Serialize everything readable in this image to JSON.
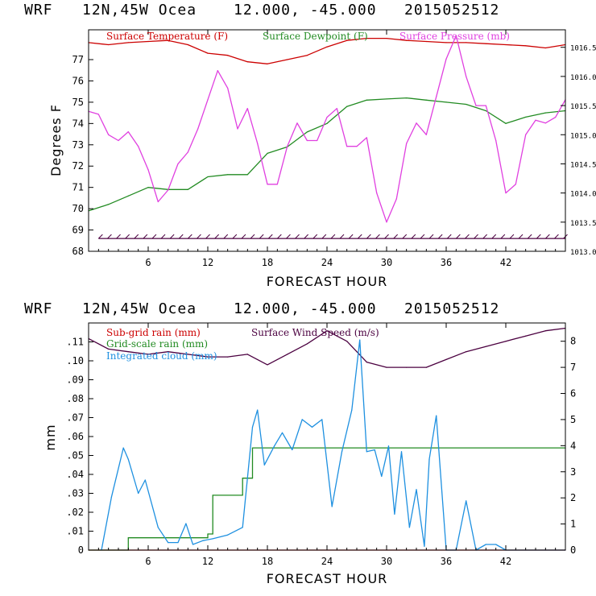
{
  "panels": [
    {
      "header": {
        "model": "WRF",
        "location": "12N,45W Ocea",
        "coords": "12.000, -45.000",
        "run": "2015052512"
      },
      "xlabel": "FORECAST HOUR",
      "ylabel": "Degrees F",
      "x_ticks": [
        "6",
        "12",
        "18",
        "24",
        "30",
        "36",
        "42"
      ],
      "y_left_ticks": [
        "68",
        "69",
        "70",
        "71",
        "72",
        "73",
        "74",
        "75",
        "76",
        "77"
      ],
      "y_right_ticks": [
        "1013.0",
        "1013.5",
        "1014.0",
        "1014.5",
        "1015.0",
        "1015.5",
        "1016.0",
        "1016.5"
      ],
      "legend": [
        {
          "label": "Surface Temperature (F)",
          "color": "#cc0000"
        },
        {
          "label": "Surface Dewpoint (F)",
          "color": "#228b22"
        },
        {
          "label": "Surface Pressure (mb)",
          "color": "#e040e0"
        }
      ]
    },
    {
      "header": {
        "model": "WRF",
        "location": "12N,45W Ocea",
        "coords": "12.000, -45.000",
        "run": "2015052512"
      },
      "xlabel": "FORECAST HOUR",
      "ylabel": "mm",
      "x_ticks": [
        "6",
        "12",
        "18",
        "24",
        "30",
        "36",
        "42"
      ],
      "y_left_ticks": [
        "0",
        ".01",
        ".02",
        ".03",
        ".04",
        ".05",
        ".06",
        ".07",
        ".08",
        ".09",
        ".10",
        ".11"
      ],
      "y_right_ticks": [
        "0",
        "1",
        "2",
        "3",
        "4",
        "5",
        "6",
        "7",
        "8"
      ],
      "legend": [
        {
          "label": "Sub-grid rain (mm)",
          "color": "#cc0000"
        },
        {
          "label": "Surface Wind Speed (m/s)",
          "color": "#4b0040"
        },
        {
          "label": "Grid-scale rain (mm)",
          "color": "#228b22"
        },
        {
          "label": "Integrated cloud (mm)",
          "color": "#1e90e0"
        }
      ]
    }
  ],
  "chart_data": [
    {
      "type": "line",
      "title": "WRF 12N,45W Ocea 12.000, -45.000 2015052512",
      "xlabel": "FORECAST HOUR",
      "ylabel": "Degrees F",
      "xlim": [
        0,
        48
      ],
      "ylim": [
        68,
        78.4
      ],
      "y2lim": [
        1013.0,
        1016.8
      ],
      "series": [
        {
          "name": "Surface Temperature (F)",
          "axis": "left",
          "color": "#cc0000",
          "x": [
            0,
            2,
            4,
            6,
            8,
            10,
            12,
            14,
            16,
            18,
            20,
            22,
            24,
            26,
            28,
            30,
            32,
            34,
            36,
            38,
            40,
            42,
            44,
            46,
            48
          ],
          "y": [
            77.8,
            77.7,
            77.8,
            77.85,
            77.9,
            77.7,
            77.3,
            77.2,
            76.9,
            76.8,
            77.0,
            77.2,
            77.6,
            77.9,
            78.0,
            78.0,
            77.9,
            77.85,
            77.8,
            77.8,
            77.75,
            77.7,
            77.65,
            77.55,
            77.7
          ]
        },
        {
          "name": "Surface Dewpoint (F)",
          "axis": "left",
          "color": "#228b22",
          "x": [
            0,
            2,
            4,
            6,
            8,
            10,
            12,
            14,
            16,
            18,
            20,
            22,
            24,
            26,
            28,
            30,
            32,
            34,
            36,
            38,
            40,
            42,
            44,
            46,
            48
          ],
          "y": [
            69.9,
            70.2,
            70.6,
            71.0,
            70.9,
            70.9,
            71.5,
            71.6,
            71.6,
            72.6,
            72.9,
            73.6,
            74.0,
            74.8,
            75.1,
            75.15,
            75.2,
            75.1,
            75.0,
            74.9,
            74.6,
            74.0,
            74.3,
            74.5,
            74.6
          ]
        },
        {
          "name": "Surface Pressure (mb)",
          "axis": "right",
          "color": "#e040e0",
          "x": [
            0,
            1,
            2,
            3,
            4,
            5,
            6,
            7,
            8,
            9,
            10,
            11,
            12,
            13,
            14,
            15,
            16,
            17,
            18,
            19,
            20,
            21,
            22,
            23,
            24,
            25,
            26,
            27,
            28,
            29,
            30,
            31,
            32,
            33,
            34,
            35,
            36,
            37,
            38,
            39,
            40,
            41,
            42,
            43,
            44,
            45,
            46,
            47,
            48
          ],
          "y": [
            1015.4,
            1015.35,
            1015.0,
            1014.9,
            1015.05,
            1014.8,
            1014.4,
            1013.85,
            1014.05,
            1014.5,
            1014.7,
            1015.1,
            1015.6,
            1016.1,
            1015.8,
            1015.1,
            1015.45,
            1014.85,
            1014.15,
            1014.15,
            1014.8,
            1015.2,
            1014.9,
            1014.9,
            1015.3,
            1015.45,
            1014.8,
            1014.8,
            1014.95,
            1014.0,
            1013.5,
            1013.9,
            1014.85,
            1015.2,
            1015.0,
            1015.65,
            1016.3,
            1016.7,
            1016.0,
            1015.5,
            1015.5,
            1014.9,
            1014.0,
            1014.15,
            1015.0,
            1015.25,
            1015.2,
            1015.3,
            1015.6
          ]
        },
        {
          "name": "Surface Wind Barbs",
          "axis": "left",
          "color": "#4b0040",
          "x": [
            1,
            48
          ],
          "y": [
            68.6,
            68.6
          ]
        }
      ]
    },
    {
      "type": "line",
      "title": "WRF 12N,45W Ocea 12.000, -45.000 2015052512",
      "xlabel": "FORECAST HOUR",
      "ylabel": "mm",
      "xlim": [
        0,
        48
      ],
      "ylim": [
        0,
        0.12
      ],
      "y2lim": [
        0,
        8.7
      ],
      "series": [
        {
          "name": "Sub-grid rain (mm)",
          "axis": "left",
          "color": "#cc0000",
          "x": [
            0,
            48
          ],
          "y": [
            0,
            0
          ]
        },
        {
          "name": "Surface Wind Speed (m/s)",
          "axis": "right",
          "color": "#4b0040",
          "x": [
            0,
            2,
            4,
            6,
            8,
            10,
            12,
            14,
            16,
            18,
            20,
            22,
            24,
            26,
            28,
            30,
            32,
            34,
            36,
            38,
            40,
            42,
            44,
            46,
            48
          ],
          "y": [
            8.1,
            7.7,
            7.6,
            7.5,
            7.6,
            7.5,
            7.4,
            7.4,
            7.5,
            7.1,
            7.5,
            7.9,
            8.4,
            8.0,
            7.2,
            7.0,
            7.0,
            7.0,
            7.3,
            7.6,
            7.8,
            8.0,
            8.2,
            8.4,
            8.5
          ]
        },
        {
          "name": "Grid-scale rain (mm)",
          "axis": "left",
          "color": "#228b22",
          "x": [
            0,
            4,
            4,
            12,
            12,
            12.5,
            12.5,
            15.5,
            15.5,
            16.5,
            16.5,
            48
          ],
          "y": [
            0,
            0,
            0.0065,
            0.0065,
            0.0085,
            0.0085,
            0.029,
            0.029,
            0.038,
            0.038,
            0.054,
            0.054
          ]
        },
        {
          "name": "Integrated cloud (mm)",
          "axis": "left",
          "color": "#1e90e0",
          "x": [
            1.3,
            2.3,
            3.5,
            4,
            5,
            5.7,
            7,
            8,
            9,
            9.8,
            10.5,
            11.5,
            12.5,
            14,
            15.5,
            16.5,
            17,
            17.7,
            18.7,
            19.5,
            20.5,
            21.5,
            22.5,
            23.5,
            24.5,
            25.5,
            26.5,
            27.3,
            28,
            28.8,
            29.5,
            30.2,
            30.8,
            31.5,
            32.3,
            33,
            33.8,
            34.3,
            35,
            36,
            37,
            38,
            39,
            40,
            41,
            42,
            48
          ],
          "y": [
            0,
            0.028,
            0.054,
            0.048,
            0.03,
            0.037,
            0.012,
            0.004,
            0.004,
            0.014,
            0.003,
            0.005,
            0.006,
            0.008,
            0.012,
            0.065,
            0.074,
            0.045,
            0.055,
            0.062,
            0.053,
            0.069,
            0.065,
            0.069,
            0.023,
            0.052,
            0.074,
            0.111,
            0.052,
            0.053,
            0.039,
            0.055,
            0.019,
            0.052,
            0.012,
            0.032,
            0.002,
            0.048,
            0.071,
            0.0,
            0.0,
            0.026,
            0.0,
            0.003,
            0.003,
            0.0,
            0.0
          ]
        }
      ]
    }
  ]
}
